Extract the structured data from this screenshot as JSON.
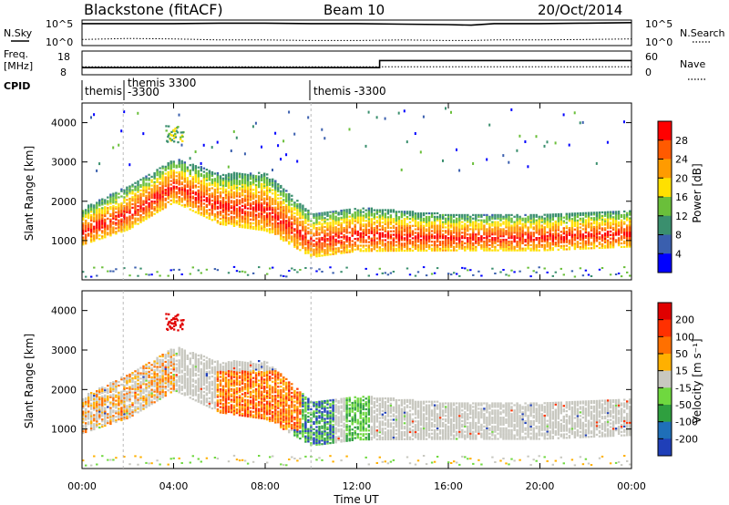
{
  "header": {
    "station": "Blackstone (fitACF)",
    "beam": "Beam 10",
    "date": "20/Oct/2014"
  },
  "noise_panel": {
    "left_label": "N.Sky",
    "right_label": "N.Search",
    "left_ticks": [
      "10^5",
      "10^0"
    ],
    "right_ticks": [
      "10^5",
      "10^0"
    ]
  },
  "freq_panel": {
    "left_label_1": "Freq.",
    "left_label_2": "[MHz]",
    "right_label": "Nave",
    "left_ticks": [
      "18",
      "8"
    ],
    "right_ticks": [
      "60",
      "0"
    ],
    "freq_step_time": "13:00"
  },
  "cpid_panel": {
    "label": "CPID",
    "entries": [
      {
        "time": "00:00",
        "text": "themis"
      },
      {
        "time": "01:50",
        "text": "themis 3300"
      },
      {
        "time": "01:50",
        "text": "-3300"
      },
      {
        "time": "10:00",
        "text": "themis -3300"
      }
    ]
  },
  "axes": {
    "ylabel": "Slant Range [km]",
    "xlabel": "Time UT",
    "y_ticks": [
      "1000",
      "2000",
      "3000",
      "4000"
    ],
    "x_ticks": [
      "00:00",
      "04:00",
      "08:00",
      "12:00",
      "16:00",
      "20:00",
      "00:00"
    ],
    "y_range_km": [
      0,
      4500
    ],
    "x_range_hours": [
      0,
      24
    ]
  },
  "power_colorbar": {
    "label": "Power [dB]",
    "ticks": [
      "4",
      "8",
      "12",
      "16",
      "20",
      "24",
      "28"
    ],
    "colors": [
      "#0000ff",
      "#3a5fae",
      "#3a8f6e",
      "#6abf3a",
      "#ffe000",
      "#ff9b00",
      "#ff5a00",
      "#ff0000"
    ]
  },
  "velocity_colorbar": {
    "label": "Velocity [m s⁻¹]",
    "ticks": [
      "200",
      "100",
      "50",
      "15",
      "-15",
      "-50",
      "-100",
      "-200"
    ],
    "colors": [
      "#1f3fb8",
      "#1f6fb8",
      "#2f9f3f",
      "#6fd83f",
      "#c8c8c0",
      "#ffb000",
      "#ff7000",
      "#ff3000",
      "#e00000"
    ]
  },
  "chart_data": [
    {
      "type": "line",
      "title": "N.Sky / N.Search",
      "x": [
        0,
        2,
        4,
        6,
        8,
        10,
        12,
        14,
        16,
        17,
        18,
        20,
        22,
        24
      ],
      "series": [
        {
          "name": "N.Sky",
          "values": [
            4.3,
            4.3,
            4.3,
            4.4,
            4.4,
            4.3,
            4.3,
            4.2,
            4.1,
            4.0,
            4.3,
            4.3,
            4.4,
            4.5
          ]
        },
        {
          "name": "N.Search",
          "values": [
            1.2,
            1.4,
            1.3,
            1.1,
            1.1,
            1.0,
            1.0,
            1.1,
            1.0,
            1.0,
            1.1,
            1.1,
            1.2,
            1.3
          ]
        }
      ]
    },
    {
      "type": "line",
      "title": "Freq / Nave",
      "x": [
        0,
        13,
        13,
        24
      ],
      "series": [
        {
          "name": "Freq. [MHz]",
          "values": [
            11,
            11,
            14,
            14
          ]
        },
        {
          "name": "Nave",
          "values": [
            20,
            20,
            20,
            20
          ]
        }
      ]
    },
    {
      "type": "heatmap",
      "title": "Power [dB]",
      "xlabel": "Time UT",
      "ylabel": "Slant Range [km]",
      "x_range": [
        0,
        24
      ],
      "y_range": [
        0,
        4500
      ],
      "band": [
        {
          "x": 0,
          "center": 1250,
          "width": 250
        },
        {
          "x": 2,
          "center": 1700,
          "width": 300
        },
        {
          "x": 4,
          "center": 2400,
          "width": 300
        },
        {
          "x": 6,
          "center": 1900,
          "width": 350
        },
        {
          "x": 8,
          "center": 1800,
          "width": 400
        },
        {
          "x": 10,
          "center": 1000,
          "width": 300
        },
        {
          "x": 12,
          "center": 1150,
          "width": 300
        },
        {
          "x": 16,
          "center": 1100,
          "width": 250
        },
        {
          "x": 20,
          "center": 1100,
          "width": 250
        },
        {
          "x": 24,
          "center": 1200,
          "width": 250
        }
      ]
    },
    {
      "type": "heatmap",
      "title": "Velocity [m s^-1]",
      "xlabel": "Time UT",
      "ylabel": "Slant Range [km]",
      "x_range": [
        0,
        24
      ],
      "y_range": [
        0,
        4500
      ]
    }
  ]
}
